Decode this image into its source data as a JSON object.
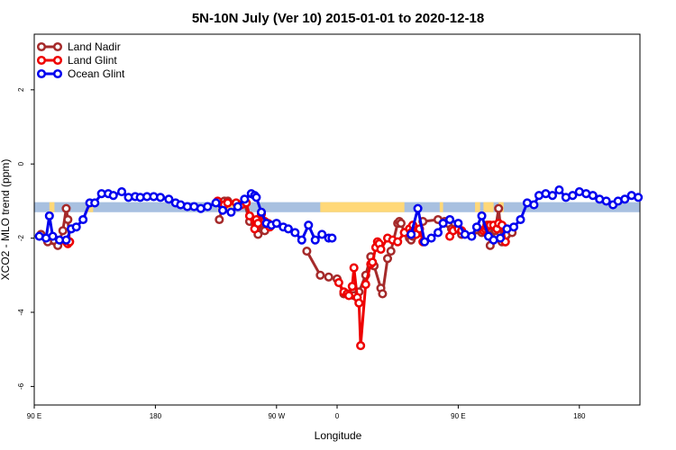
{
  "chart_data": {
    "type": "line",
    "title": "5N-10N July (Ver 10)   2015-01-01 to 2020-12-18",
    "xlabel": "Longitude",
    "ylabel": "XCO2 - MLO trend (ppm)",
    "xlim": [
      -180,
      180
    ],
    "ylim": [
      -6.5,
      3.5
    ],
    "xticks": [
      {
        "value": -180,
        "label": "90 E"
      },
      {
        "value": -108,
        "label": "180"
      },
      {
        "value": -36,
        "label": "90 W"
      },
      {
        "value": 0,
        "label": "0"
      },
      {
        "value": 72,
        "label": "90 E"
      },
      {
        "value": 144,
        "label": "180"
      }
    ],
    "yticks": [
      -6,
      -4,
      -2,
      0,
      2
    ],
    "legend_position": "top-left",
    "land_mask_band": {
      "y_range": [
        -1.3,
        -1.03
      ],
      "ocean_color": "#A8C0E0",
      "land_color": "#FFD878"
    },
    "land_segments": [
      [
        -171,
        -168
      ],
      [
        -149,
        -145
      ],
      [
        -71,
        -62
      ],
      [
        -10,
        40
      ],
      [
        61,
        63
      ],
      [
        82,
        85
      ],
      [
        87,
        90
      ],
      [
        90,
        93
      ],
      [
        96,
        99
      ]
    ],
    "series": [
      {
        "name": "Land Nadir",
        "color": "#A52A2A",
        "x": [
          -176,
          -172,
          -166,
          -163,
          -161,
          -160,
          -159,
          -70,
          -67,
          -65,
          -55,
          -52,
          -49,
          -48,
          -47,
          -45,
          -43,
          -18,
          -10,
          -5,
          0,
          4,
          10,
          13,
          17,
          20,
          22,
          26,
          27,
          30,
          32,
          36,
          37,
          38,
          40,
          43,
          44,
          45,
          51,
          60,
          64,
          66,
          68,
          74,
          86,
          87,
          89,
          90,
          91,
          94,
          96,
          98,
          100,
          104
        ],
        "y": [
          -1.9,
          -2.1,
          -2.2,
          -1.8,
          -1.2,
          -1.5,
          -2.1,
          -1.5,
          -1.0,
          -1.0,
          -1.05,
          -1.55,
          -1.6,
          -1.7,
          -1.9,
          -1.6,
          -1.8,
          -2.35,
          -3.0,
          -3.05,
          -3.1,
          -3.5,
          -3.55,
          -3.45,
          -3.0,
          -2.5,
          -2.75,
          -3.35,
          -3.5,
          -2.55,
          -2.35,
          -1.6,
          -1.55,
          -1.6,
          -1.85,
          -2.0,
          -2.05,
          -1.95,
          -1.55,
          -1.5,
          -1.55,
          -1.6,
          -1.75,
          -1.9,
          -1.85,
          -1.8,
          -1.65,
          -1.75,
          -2.2,
          -1.8,
          -1.2,
          -2.1,
          -2.1,
          -1.85
        ]
      },
      {
        "name": "Land Glint",
        "color": "#EE0000",
        "x": [
          -161,
          -160,
          -159,
          -71,
          -67,
          -65,
          -60,
          -59,
          -57,
          -54,
          -52,
          -49,
          -48,
          -47,
          -45,
          -43,
          -41,
          -40,
          1,
          4,
          6,
          7,
          9,
          10,
          12,
          13,
          14,
          17,
          20,
          21,
          23,
          24,
          25,
          26,
          30,
          33,
          36,
          40,
          43,
          44,
          45,
          47,
          49,
          51,
          67,
          69,
          72,
          74,
          87,
          88,
          89,
          90,
          91,
          93,
          95,
          96,
          98,
          100
        ],
        "y": [
          -2.1,
          -2.15,
          -2.1,
          -1.0,
          -1.1,
          -1.05,
          -1.05,
          -1.15,
          -1.1,
          -1.05,
          -1.4,
          -1.75,
          -1.5,
          -1.6,
          -1.35,
          -1.55,
          -1.6,
          -1.7,
          -3.2,
          -3.45,
          -3.5,
          -3.55,
          -3.3,
          -2.8,
          -3.6,
          -3.75,
          -4.9,
          -3.25,
          -2.7,
          -2.65,
          -2.25,
          -2.1,
          -2.15,
          -2.3,
          -2.0,
          -2.05,
          -2.1,
          -1.85,
          -1.75,
          -1.85,
          -1.65,
          -1.9,
          -1.75,
          -2.1,
          -1.95,
          -1.8,
          -1.75,
          -1.8,
          -1.8,
          -1.75,
          -1.7,
          -1.65,
          -1.65,
          -1.65,
          -1.75,
          -1.6,
          -1.65,
          -2.1
        ]
      },
      {
        "name": "Ocean Glint",
        "color": "#0000EE",
        "x": [
          -177,
          -173,
          -171,
          -169,
          -165,
          -161,
          -158,
          -155,
          -151,
          -147,
          -144,
          -140,
          -136,
          -133,
          -128,
          -124,
          -120,
          -117,
          -113,
          -109,
          -105,
          -100,
          -96,
          -93,
          -89,
          -85,
          -81,
          -77,
          -72,
          -68,
          -63,
          -59,
          -55,
          -51,
          -49,
          -48,
          -45,
          -42,
          -39,
          -36,
          -32,
          -29,
          -25,
          -21,
          -17,
          -13,
          -9,
          -5,
          -3,
          44,
          48,
          52,
          56,
          60,
          63,
          67,
          72,
          76,
          80,
          83,
          86,
          90,
          93,
          97,
          101,
          105,
          109,
          113,
          117,
          120,
          124,
          128,
          132,
          136,
          140,
          144,
          148,
          152,
          156,
          160,
          164,
          167,
          171,
          175,
          179
        ],
        "y": [
          -1.95,
          -2.0,
          -1.4,
          -1.95,
          -2.05,
          -2.05,
          -1.75,
          -1.7,
          -1.5,
          -1.05,
          -1.05,
          -0.8,
          -0.8,
          -0.85,
          -0.75,
          -0.9,
          -0.88,
          -0.9,
          -0.88,
          -0.88,
          -0.9,
          -0.95,
          -1.05,
          -1.1,
          -1.15,
          -1.15,
          -1.2,
          -1.15,
          -1.05,
          -1.25,
          -1.3,
          -1.15,
          -0.95,
          -0.8,
          -0.85,
          -0.9,
          -1.3,
          -1.6,
          -1.65,
          -1.6,
          -1.7,
          -1.75,
          -1.85,
          -2.05,
          -1.65,
          -2.05,
          -1.9,
          -2.0,
          -2.0,
          -1.9,
          -1.2,
          -2.1,
          -2.0,
          -1.85,
          -1.6,
          -1.5,
          -1.6,
          -1.9,
          -1.95,
          -1.7,
          -1.4,
          -1.95,
          -2.05,
          -2.0,
          -1.75,
          -1.7,
          -1.5,
          -1.05,
          -1.1,
          -0.85,
          -0.8,
          -0.85,
          -0.7,
          -0.9,
          -0.85,
          -0.75,
          -0.8,
          -0.85,
          -0.95,
          -1.0,
          -1.1,
          -1.0,
          -0.95,
          -0.85,
          -0.9
        ]
      }
    ]
  }
}
